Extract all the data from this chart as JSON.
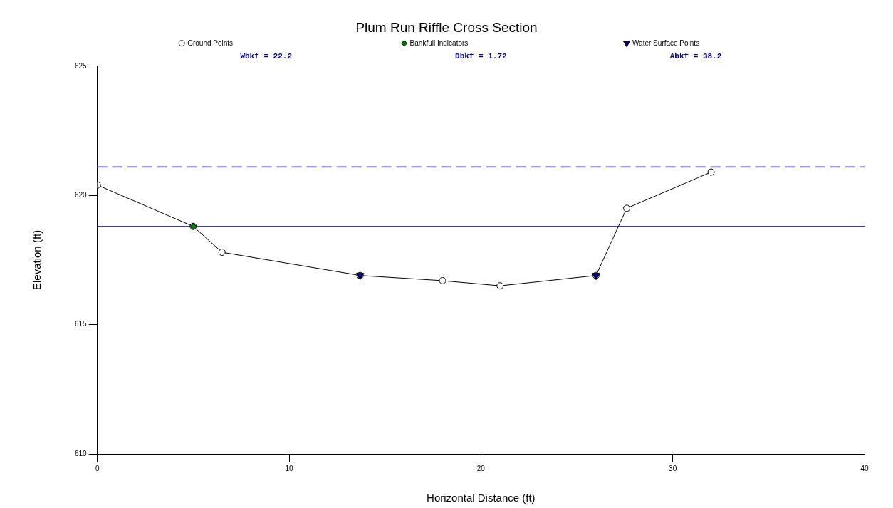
{
  "chart_data": {
    "type": "line",
    "title": "Plum Run Riffle Cross Section",
    "xlabel": "Horizontal Distance (ft)",
    "ylabel": "Elevation (ft)",
    "xlim": [
      0,
      40
    ],
    "xticks": [
      0,
      10,
      20,
      30,
      40
    ],
    "ylim": [
      610,
      625
    ],
    "yticks": [
      610,
      615,
      620,
      625
    ],
    "grid": false,
    "legend": "top",
    "annotations": [
      "Wbkf = 22.2",
      "Dbkf = 1.72",
      "Abkf = 38.2"
    ],
    "ref_lines": [
      {
        "axis": "y",
        "value": 621.1,
        "color": "#8080d8",
        "line_style": "dashed"
      },
      {
        "axis": "y",
        "value": 618.8,
        "color": "#000080",
        "line_style": "solid"
      }
    ],
    "series": [
      {
        "name": "Ground Points",
        "color": "#000000",
        "marker": "circle",
        "x": [
          0,
          5.0,
          6.5,
          13.7,
          18.0,
          21.0,
          26.0,
          27.6,
          32.0
        ],
        "values": [
          620.4,
          618.8,
          617.8,
          616.9,
          616.7,
          616.5,
          616.9,
          619.5,
          620.9
        ]
      },
      {
        "name": "Bankfull Indicators",
        "type": "scatter",
        "color": "#008000",
        "marker": "diamond",
        "x": [
          5.0
        ],
        "values": [
          618.8
        ]
      },
      {
        "name": "Water Surface Points",
        "type": "scatter",
        "color": "#000080",
        "marker": "triangle",
        "x": [
          13.7,
          26.0
        ],
        "values": [
          616.9,
          616.9
        ]
      }
    ]
  }
}
